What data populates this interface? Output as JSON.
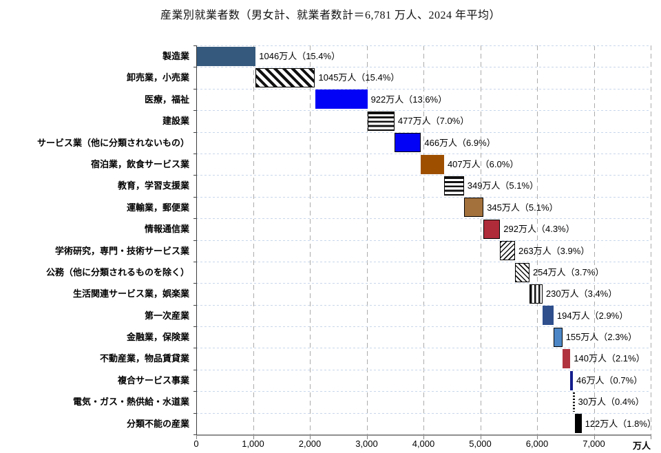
{
  "title": "産業別就業者数（男女計、就業者数計＝6,781 万人、2024 年平均）",
  "chart_data": {
    "type": "bar",
    "subtype": "horizontal-waterfall-cascade",
    "title": "産業別就業者数（男女計、就業者数計＝6,781 万人、2024 年平均）",
    "total_employed_label": "就業者数計＝6,781 万人",
    "period": "2024 年平均",
    "unit": "万人",
    "xlim": [
      0,
      8000
    ],
    "grid": true,
    "xtick_labels": [
      "0",
      "1,000",
      "2,000",
      "3,000",
      "4,000",
      "5,000",
      "6,000",
      "7,000"
    ],
    "xtick_values": [
      0,
      1000,
      2000,
      3000,
      4000,
      5000,
      6000,
      7000
    ],
    "x_axis_unit_label": "万人",
    "legend": "none",
    "bars": [
      {
        "category": "製造業",
        "value": 1046,
        "percent": 15.4,
        "label": "1046万人（15.4%）",
        "fill": "solid",
        "color": "#35597D",
        "border": false
      },
      {
        "category": "卸売業，小売業",
        "value": 1045,
        "percent": 15.4,
        "label": "1045万人（15.4%）",
        "fill": "pattern",
        "pattern": "diag-bold",
        "border": true
      },
      {
        "category": "医療，福祉",
        "value": 922,
        "percent": 13.6,
        "label": "922万人（13.6%）",
        "fill": "solid",
        "color": "#0202F6",
        "border": false
      },
      {
        "category": "建設業",
        "value": 477,
        "percent": 7.0,
        "label": "477万人（7.0%）",
        "fill": "pattern",
        "pattern": "hstripe",
        "border": true
      },
      {
        "category": "サービス業（他に分類されないもの）",
        "value": 466,
        "percent": 6.9,
        "label": "466万人（6.9%）",
        "fill": "solid",
        "color": "#0202F6",
        "border": true
      },
      {
        "category": "宿泊業，飲食サービス業",
        "value": 407,
        "percent": 6.0,
        "label": "407万人（6.0%）",
        "fill": "solid",
        "color": "#9E5000",
        "border": false
      },
      {
        "category": "教育，学習支援業",
        "value": 349,
        "percent": 5.1,
        "label": "349万人（5.1%）",
        "fill": "pattern",
        "pattern": "hstripe",
        "border": true
      },
      {
        "category": "運輸業，郵便業",
        "value": 345,
        "percent": 5.1,
        "label": "345万人（5.1%）",
        "fill": "solid",
        "color": "#A3713C",
        "border": true
      },
      {
        "category": "情報通信業",
        "value": 292,
        "percent": 4.3,
        "label": "292万人（4.3%）",
        "fill": "solid",
        "color": "#AF2B3A",
        "border": true
      },
      {
        "category": "学術研究，専門・技術サービス業",
        "value": 263,
        "percent": 3.9,
        "label": "263万人（3.9%）",
        "fill": "pattern",
        "pattern": "diag-thin-up",
        "border": true
      },
      {
        "category": "公務（他に分類されるものを除く）",
        "value": 254,
        "percent": 3.7,
        "label": "254万人（3.7%）",
        "fill": "pattern",
        "pattern": "diag-thin-down",
        "border": true
      },
      {
        "category": "生活関連サービス業，娯楽業",
        "value": 230,
        "percent": 3.4,
        "label": "230万人（3.4%）",
        "fill": "pattern",
        "pattern": "vstripe",
        "border": true
      },
      {
        "category": "第一次産業",
        "value": 194,
        "percent": 2.9,
        "label": "194万人（2.9%）",
        "fill": "solid",
        "color": "#2E4E8C",
        "border": false
      },
      {
        "category": "金融業，保険業",
        "value": 155,
        "percent": 2.3,
        "label": "155万人（2.3%）",
        "fill": "solid",
        "color": "#4C86C6",
        "border": true
      },
      {
        "category": "不動産業，物品賃貸業",
        "value": 140,
        "percent": 2.1,
        "label": "140万人（2.1%）",
        "fill": "solid",
        "color": "#B0333F",
        "border": false
      },
      {
        "category": "複合サービス事業",
        "value": 46,
        "percent": 0.7,
        "label": "46万人（0.7%）",
        "fill": "solid",
        "color": "#141E8C",
        "border": false
      },
      {
        "category": "電気・ガス・熱供給・水道業",
        "value": 30,
        "percent": 0.4,
        "label": "30万人（0.4%）",
        "fill": "pattern",
        "pattern": "dots",
        "border": false
      },
      {
        "category": "分類不能の産業",
        "value": 122,
        "percent": 1.8,
        "label": "122万人（1.8%）",
        "fill": "solid",
        "color": "#000000",
        "border": false
      }
    ]
  },
  "colors": {
    "gridline": "#ABABAB",
    "row_separator": "#C8D6EA",
    "x_axis": "#8F8F8F",
    "category_axis": "#3F3F3F",
    "text": "#000000",
    "background": "#FFFFFF"
  }
}
